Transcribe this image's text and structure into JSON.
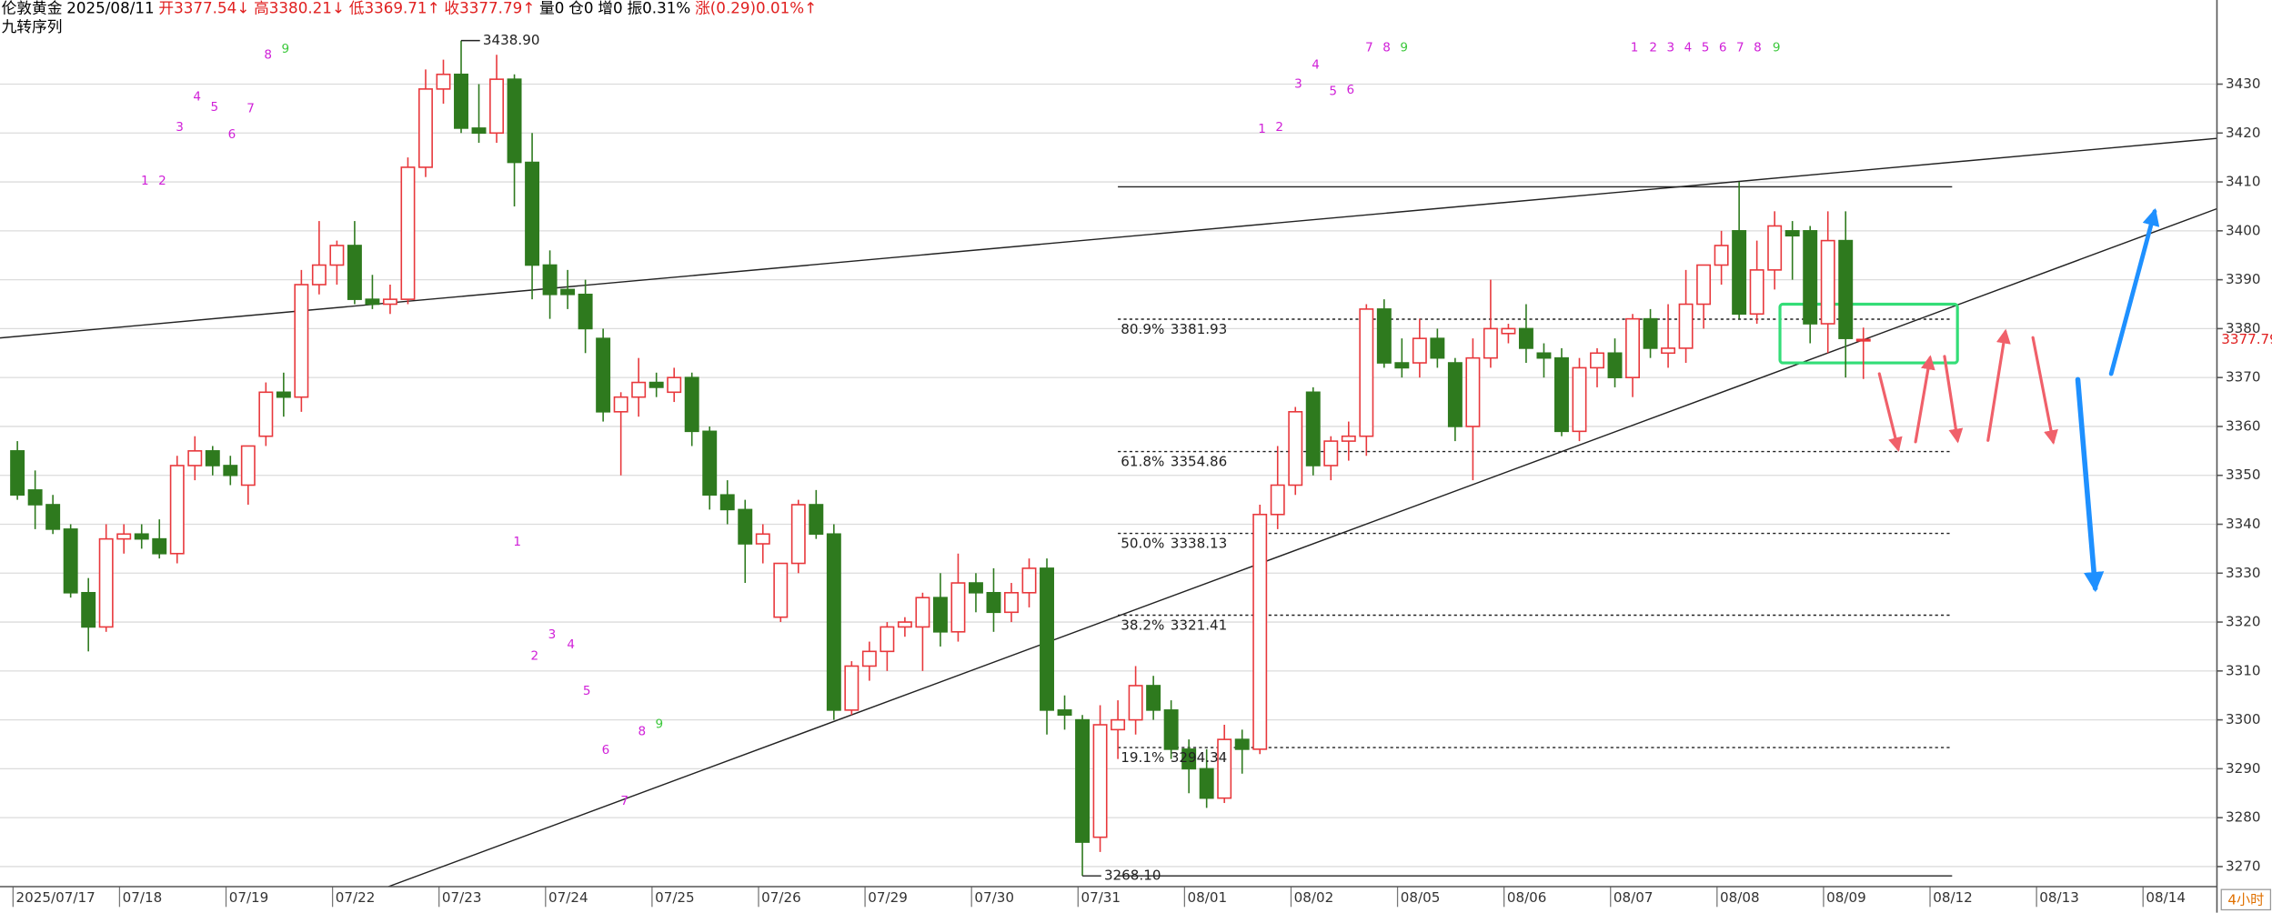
{
  "chart_data": {
    "type": "candlestick",
    "title_parts": [
      {
        "text": "伦敦黄金",
        "color": "#000000"
      },
      {
        "text": "2025/08/11",
        "color": "#000000"
      },
      {
        "text": "开3377.54↓",
        "color": "#e02020"
      },
      {
        "text": "高3380.21↓",
        "color": "#e02020"
      },
      {
        "text": "低3369.71↑",
        "color": "#e02020"
      },
      {
        "text": "收3377.79↑",
        "color": "#e02020"
      },
      {
        "text": "量0",
        "color": "#000000"
      },
      {
        "text": "仓0",
        "color": "#000000"
      },
      {
        "text": "增0",
        "color": "#000000"
      },
      {
        "text": "振0.31%",
        "color": "#000000"
      },
      {
        "text": "涨(0.29)0.01%↑",
        "color": "#e02020"
      }
    ],
    "subtitle": "九转序列",
    "timeframe": "4小时",
    "up_color": "#e8383c",
    "down_color": "#2e7a1e",
    "categories": [
      "2025/07/17",
      null,
      null,
      null,
      null,
      null,
      "07/18",
      null,
      null,
      null,
      null,
      null,
      "07/19",
      null,
      null,
      null,
      null,
      null,
      "07/22",
      null,
      null,
      null,
      null,
      null,
      "07/23",
      null,
      null,
      null,
      null,
      null,
      "07/24",
      null,
      null,
      null,
      null,
      null,
      "07/25",
      null,
      null,
      null,
      null,
      null,
      "07/26",
      null,
      null,
      null,
      null,
      null,
      "07/29",
      null,
      null,
      null,
      null,
      null,
      "07/30",
      null,
      null,
      null,
      null,
      null,
      "07/31",
      null,
      null,
      null,
      null,
      null,
      "08/01",
      null,
      null,
      null,
      null,
      null,
      "08/02",
      null,
      null,
      null,
      null,
      null,
      "08/05",
      null,
      null,
      null,
      null,
      null,
      "08/06",
      null,
      null,
      null,
      null,
      null,
      "08/07",
      null,
      null,
      null,
      null,
      null,
      "08/08",
      null,
      null,
      null,
      null,
      null,
      "08/09",
      null,
      null,
      null,
      null,
      null,
      "08/12",
      null,
      null,
      null,
      null,
      null,
      "08/13",
      null,
      null,
      null,
      null,
      null,
      "08/14"
    ],
    "open": [
      3355,
      3347,
      3344,
      3339,
      3326,
      3319,
      3337,
      3338,
      3337,
      3334,
      3352,
      3355,
      3352,
      3348,
      3358,
      3367,
      3366,
      3389,
      3393,
      3397,
      3386,
      3385,
      3386,
      3413,
      3429,
      3432,
      3421,
      3420,
      3431,
      3414,
      3393,
      3388,
      3387,
      3378,
      3363,
      3366,
      3369,
      3367,
      3370,
      3359,
      3346,
      3343,
      3336,
      3321,
      3332,
      3344,
      3338,
      3302,
      3311,
      3314,
      3319,
      3319,
      3325,
      3318,
      3328,
      3326,
      3322,
      3326,
      3331,
      3302,
      3300,
      3276,
      3298,
      3300,
      3307,
      3302,
      3294,
      3290,
      3284,
      3296,
      3294,
      3342,
      3348,
      3367,
      3352,
      3357,
      3358,
      3384,
      3373,
      3373,
      3378,
      3373,
      3360,
      3374,
      3379,
      3380,
      3375,
      3374,
      3359,
      3372,
      3375,
      3370,
      3382,
      3375,
      3376,
      3385,
      3393,
      3400,
      3383,
      3392,
      3400,
      3400,
      3381,
      3398,
      3377.54,
      null,
      null,
      null,
      null,
      null,
      null,
      null,
      null,
      null,
      null,
      null,
      null,
      null,
      null,
      null,
      null
    ],
    "high": [
      3357,
      3351,
      3346,
      3340,
      3329,
      3340,
      3340,
      3340,
      3341,
      3354,
      3358,
      3356,
      3354,
      3356,
      3369,
      3371,
      3392,
      3402,
      3398,
      3402,
      3391,
      3389,
      3415,
      3433,
      3435,
      3438.9,
      3430,
      3436,
      3432,
      3420,
      3396,
      3392,
      3390,
      3380,
      3367,
      3374,
      3371,
      3372,
      3371,
      3360,
      3349,
      3345,
      3340,
      3332,
      3345,
      3347,
      3340,
      3312,
      3316,
      3320,
      3321,
      3326,
      3330,
      3334,
      3330,
      3331,
      3328,
      3333,
      3333,
      3305,
      3301,
      3303,
      3304,
      3311,
      3309,
      3304,
      3296,
      3294,
      3299,
      3298,
      3344,
      3356,
      3364,
      3368,
      3358,
      3361,
      3385,
      3386,
      3378,
      3382,
      3380,
      3374,
      3378,
      3390,
      3381,
      3385,
      3377,
      3376,
      3374,
      3376,
      3378,
      3383,
      3384,
      3385,
      3392,
      3393,
      3400,
      3410,
      3398,
      3404,
      3402,
      3401,
      3404,
      3404,
      3380.21,
      null,
      null,
      null,
      null,
      null,
      null,
      null,
      null,
      null,
      null,
      null,
      null,
      null,
      null,
      null,
      null
    ],
    "low": [
      3345,
      3339,
      3338,
      3325,
      3314,
      3318,
      3334,
      3335,
      3333,
      3332,
      3349,
      3350,
      3348,
      3344,
      3356,
      3362,
      3363,
      3387,
      3389,
      3385,
      3384,
      3383,
      3385,
      3411,
      3426,
      3420,
      3418,
      3418,
      3405,
      3386,
      3382,
      3384,
      3375,
      3361,
      3350,
      3362,
      3366,
      3365,
      3356,
      3343,
      3340,
      3328,
      3332,
      3320,
      3330,
      3337,
      3300,
      3301,
      3308,
      3310,
      3317,
      3310,
      3315,
      3316,
      3322,
      3318,
      3320,
      3323,
      3297,
      3298,
      3268.1,
      3273,
      3292,
      3297,
      3300,
      3292,
      3285,
      3282,
      3283,
      3289,
      3293,
      3339,
      3346,
      3350,
      3349,
      3353,
      3354,
      3372,
      3370,
      3370,
      3372,
      3357,
      3349,
      3372,
      3377,
      3373,
      3370,
      3358,
      3357,
      3368,
      3368,
      3366,
      3374,
      3372,
      3373,
      3380,
      3389,
      3382,
      3381,
      3388,
      3390,
      3377,
      3375,
      3370,
      3369.71,
      null,
      null,
      null,
      null,
      null,
      null,
      null,
      null,
      null,
      null,
      null,
      null,
      null,
      null,
      null,
      null
    ],
    "close": [
      3346,
      3344,
      3339,
      3326,
      3319,
      3337,
      3338,
      3337,
      3334,
      3352,
      3355,
      3352,
      3350,
      3356,
      3367,
      3366,
      3389,
      3393,
      3397,
      3386,
      3385,
      3386,
      3413,
      3429,
      3432,
      3421,
      3420,
      3431,
      3414,
      3393,
      3387,
      3387,
      3380,
      3363,
      3366,
      3369,
      3368,
      3370,
      3359,
      3346,
      3343,
      3336,
      3338,
      3332,
      3344,
      3338,
      3302,
      3311,
      3314,
      3319,
      3320,
      3325,
      3318,
      3328,
      3326,
      3322,
      3326,
      3331,
      3302,
      3301,
      3275,
      3299,
      3300,
      3307,
      3302,
      3294,
      3290,
      3284,
      3296,
      3294,
      3342,
      3348,
      3363,
      3352,
      3357,
      3358,
      3384,
      3373,
      3372,
      3378,
      3374,
      3360,
      3374,
      3380,
      3380,
      3376,
      3374,
      3359,
      3372,
      3375,
      3370,
      3382,
      3376,
      3376,
      3385,
      3393,
      3397,
      3383,
      3392,
      3401,
      3399,
      3381,
      3398,
      3378,
      3377.79,
      null,
      null,
      null,
      null,
      null,
      null,
      null,
      null,
      null,
      null,
      null,
      null,
      null,
      null,
      null,
      null
    ],
    "ylim": [
      3265.9,
      3447.2
    ],
    "yticks": [
      3270,
      3280,
      3290,
      3300,
      3310,
      3320,
      3330,
      3340,
      3350,
      3360,
      3370,
      3380,
      3390,
      3400,
      3410,
      3420,
      3430
    ],
    "grid": true,
    "last_price": 3377.79,
    "high_label": {
      "value": 3438.9,
      "label": "3438.90"
    },
    "low_label": {
      "value": 3268.1,
      "label": "3268.10"
    },
    "fib_span": [
      62,
      109
    ],
    "fib_levels": [
      {
        "ratio": "80.9%",
        "price": 3381.93
      },
      {
        "ratio": "61.8%",
        "price": 3354.86
      },
      {
        "ratio": "50.0%",
        "price": 3338.13
      },
      {
        "ratio": "38.2%",
        "price": 3321.41
      },
      {
        "ratio": "19.1%",
        "price": 3294.34
      }
    ],
    "range_lines": [
      3409,
      3268.1
    ],
    "trendlines": [
      {
        "index": [
          -0.98,
          123.9
        ],
        "price": [
          3378.1,
          3418.9
        ]
      },
      {
        "index": [
          20.9,
          123.9
        ],
        "price": [
          3265.9,
          3404.5
        ]
      }
    ],
    "highlight_box": {
      "index": [
        99.3,
        109.3
      ],
      "price": [
        3373,
        3385
      ],
      "color": "#33dd77"
    },
    "td_sequential": [
      [
        1,
        2,
        3,
        4,
        5,
        6,
        7,
        8,
        9
      ],
      [
        1,
        2,
        3,
        4,
        5,
        6,
        7,
        8,
        9
      ],
      [
        1,
        2,
        3,
        4,
        5,
        6,
        7,
        8,
        9
      ],
      [
        1,
        2,
        3,
        4,
        5,
        6,
        7,
        8,
        9
      ]
    ]
  }
}
